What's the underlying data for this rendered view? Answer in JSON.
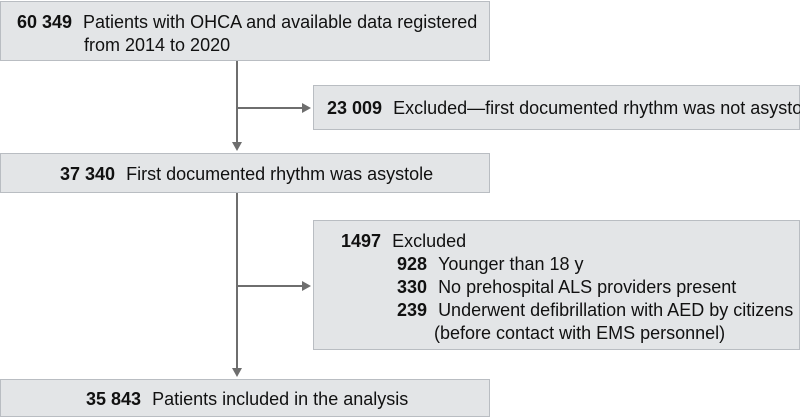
{
  "box1": {
    "count": "60 349",
    "line1": "Patients with OHCA and available data registered",
    "line2": "from 2014 to 2020"
  },
  "excl1": {
    "count": "23 009",
    "text": "Excluded—first documented rhythm was not asystole"
  },
  "box2": {
    "count": "37 340",
    "text": "First documented rhythm was asystole"
  },
  "excl2": {
    "count": "1497",
    "text": "Excluded",
    "items": [
      {
        "count": "928",
        "line1": "Younger than 18 y"
      },
      {
        "count": "330",
        "line1": "No prehospital ALS providers present"
      },
      {
        "count": "239",
        "line1": "Underwent defibrillation with AED by citizens",
        "line2": "(before contact with EMS personnel)"
      }
    ]
  },
  "box3": {
    "count": "35 843",
    "text": "Patients included in the analysis"
  },
  "colors": {
    "box_fill": "#e3e5e7",
    "box_border": "#b9bdc2",
    "connector": "#6e6e6e"
  }
}
